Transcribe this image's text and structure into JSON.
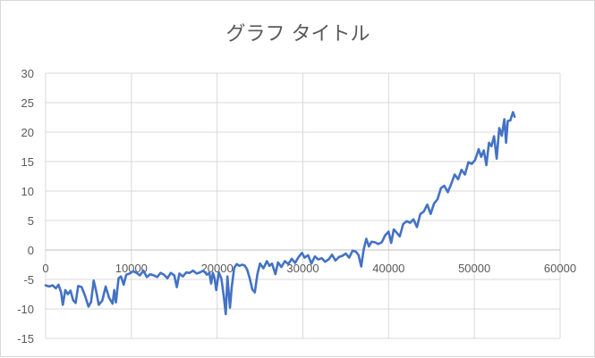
{
  "chart_data": {
    "type": "line",
    "title": "グラフ タイトル",
    "xlabel": "",
    "ylabel": "",
    "xlim": [
      0,
      60000
    ],
    "ylim": [
      -15,
      30
    ],
    "x_ticks": [
      0,
      10000,
      20000,
      30000,
      40000,
      50000,
      60000
    ],
    "y_ticks": [
      30,
      25,
      20,
      15,
      10,
      5,
      0,
      -5,
      -10,
      -15
    ],
    "grid": true,
    "legend": "none",
    "series": [
      {
        "color": "#4472c4",
        "points": [
          [
            0,
            -6.0
          ],
          [
            400,
            -6.2
          ],
          [
            800,
            -6.0
          ],
          [
            1200,
            -6.5
          ],
          [
            1500,
            -5.9
          ],
          [
            1800,
            -7.2
          ],
          [
            2000,
            -9.3
          ],
          [
            2300,
            -6.8
          ],
          [
            2600,
            -7.5
          ],
          [
            2900,
            -6.9
          ],
          [
            3200,
            -8.5
          ],
          [
            3500,
            -9.0
          ],
          [
            3800,
            -6.1
          ],
          [
            4200,
            -6.3
          ],
          [
            4600,
            -7.8
          ],
          [
            5000,
            -9.6
          ],
          [
            5300,
            -8.8
          ],
          [
            5600,
            -5.2
          ],
          [
            5900,
            -7.0
          ],
          [
            6200,
            -9.3
          ],
          [
            6600,
            -8.6
          ],
          [
            7000,
            -6.2
          ],
          [
            7400,
            -8.1
          ],
          [
            7800,
            -9.1
          ],
          [
            8000,
            -6.8
          ],
          [
            8200,
            -8.9
          ],
          [
            8500,
            -4.8
          ],
          [
            8800,
            -4.5
          ],
          [
            9100,
            -5.9
          ],
          [
            9400,
            -4.2
          ],
          [
            9800,
            -4.0
          ],
          [
            10200,
            -3.6
          ],
          [
            10600,
            -3.9
          ],
          [
            11000,
            -4.3
          ],
          [
            11400,
            -3.5
          ],
          [
            11800,
            -4.6
          ],
          [
            12200,
            -4.1
          ],
          [
            12600,
            -4.3
          ],
          [
            13000,
            -4.6
          ],
          [
            13400,
            -3.9
          ],
          [
            13800,
            -4.2
          ],
          [
            14200,
            -4.8
          ],
          [
            14600,
            -3.9
          ],
          [
            15000,
            -4.3
          ],
          [
            15300,
            -6.3
          ],
          [
            15600,
            -4.0
          ],
          [
            16000,
            -4.5
          ],
          [
            16400,
            -3.8
          ],
          [
            16800,
            -3.9
          ],
          [
            17200,
            -3.5
          ],
          [
            17600,
            -4.0
          ],
          [
            18000,
            -3.8
          ],
          [
            18400,
            -3.5
          ],
          [
            18800,
            -4.2
          ],
          [
            19100,
            -3.9
          ],
          [
            19300,
            -5.7
          ],
          [
            19500,
            -3.9
          ],
          [
            19700,
            -4.8
          ],
          [
            19900,
            -6.8
          ],
          [
            20200,
            -3.8
          ],
          [
            20500,
            -4.9
          ],
          [
            20800,
            -8.1
          ],
          [
            21000,
            -10.9
          ],
          [
            21200,
            -4.5
          ],
          [
            21500,
            -9.8
          ],
          [
            21700,
            -6.3
          ],
          [
            22000,
            -3.0
          ],
          [
            22300,
            -2.4
          ],
          [
            22600,
            -2.7
          ],
          [
            22900,
            -2.5
          ],
          [
            23200,
            -2.6
          ],
          [
            23500,
            -3.3
          ],
          [
            23800,
            -4.8
          ],
          [
            24100,
            -6.7
          ],
          [
            24400,
            -7.2
          ],
          [
            24700,
            -4.1
          ],
          [
            25000,
            -2.3
          ],
          [
            25400,
            -3.1
          ],
          [
            25800,
            -1.9
          ],
          [
            26100,
            -2.7
          ],
          [
            26400,
            -2.3
          ],
          [
            26800,
            -4.1
          ],
          [
            27100,
            -2.1
          ],
          [
            27500,
            -2.9
          ],
          [
            27900,
            -1.9
          ],
          [
            28300,
            -2.4
          ],
          [
            28700,
            -1.5
          ],
          [
            29100,
            -2.2
          ],
          [
            29500,
            -1.2
          ],
          [
            29900,
            -0.5
          ],
          [
            30200,
            -1.3
          ],
          [
            30600,
            -0.9
          ],
          [
            31000,
            -2.3
          ],
          [
            31400,
            -1.1
          ],
          [
            31800,
            -1.6
          ],
          [
            32200,
            -1.4
          ],
          [
            32600,
            -2.0
          ],
          [
            33000,
            -1.6
          ],
          [
            33400,
            -0.8
          ],
          [
            33800,
            -1.8
          ],
          [
            34200,
            -1.2
          ],
          [
            34600,
            -1.0
          ],
          [
            35000,
            -0.6
          ],
          [
            35400,
            -1.3
          ],
          [
            35800,
            -0.1
          ],
          [
            36200,
            -0.3
          ],
          [
            36500,
            -0.9
          ],
          [
            36800,
            -2.8
          ],
          [
            37100,
            0.1
          ],
          [
            37400,
            1.9
          ],
          [
            37700,
            0.6
          ],
          [
            38000,
            1.4
          ],
          [
            38400,
            1.3
          ],
          [
            38800,
            1.0
          ],
          [
            39200,
            1.3
          ],
          [
            39600,
            2.5
          ],
          [
            40000,
            3.1
          ],
          [
            40300,
            1.2
          ],
          [
            40600,
            3.5
          ],
          [
            40900,
            3.0
          ],
          [
            41300,
            2.3
          ],
          [
            41700,
            4.4
          ],
          [
            42100,
            4.9
          ],
          [
            42500,
            4.6
          ],
          [
            42900,
            5.2
          ],
          [
            43300,
            3.9
          ],
          [
            43700,
            6.1
          ],
          [
            44100,
            6.5
          ],
          [
            44500,
            7.7
          ],
          [
            44900,
            6.1
          ],
          [
            45300,
            7.9
          ],
          [
            45700,
            8.6
          ],
          [
            46100,
            10.5
          ],
          [
            46500,
            10.9
          ],
          [
            46900,
            9.8
          ],
          [
            47300,
            11.2
          ],
          [
            47700,
            12.8
          ],
          [
            48100,
            12.0
          ],
          [
            48500,
            13.6
          ],
          [
            48900,
            12.8
          ],
          [
            49300,
            14.9
          ],
          [
            49700,
            14.6
          ],
          [
            50100,
            15.3
          ],
          [
            50500,
            17.1
          ],
          [
            50800,
            15.8
          ],
          [
            51100,
            16.9
          ],
          [
            51400,
            14.4
          ],
          [
            51700,
            18.2
          ],
          [
            52000,
            17.6
          ],
          [
            52300,
            19.3
          ],
          [
            52600,
            15.5
          ],
          [
            52900,
            20.7
          ],
          [
            53200,
            19.4
          ],
          [
            53500,
            22.2
          ],
          [
            53700,
            18.2
          ],
          [
            53900,
            21.9
          ],
          [
            54200,
            22.0
          ],
          [
            54500,
            23.4
          ],
          [
            54700,
            22.6
          ]
        ]
      }
    ]
  }
}
